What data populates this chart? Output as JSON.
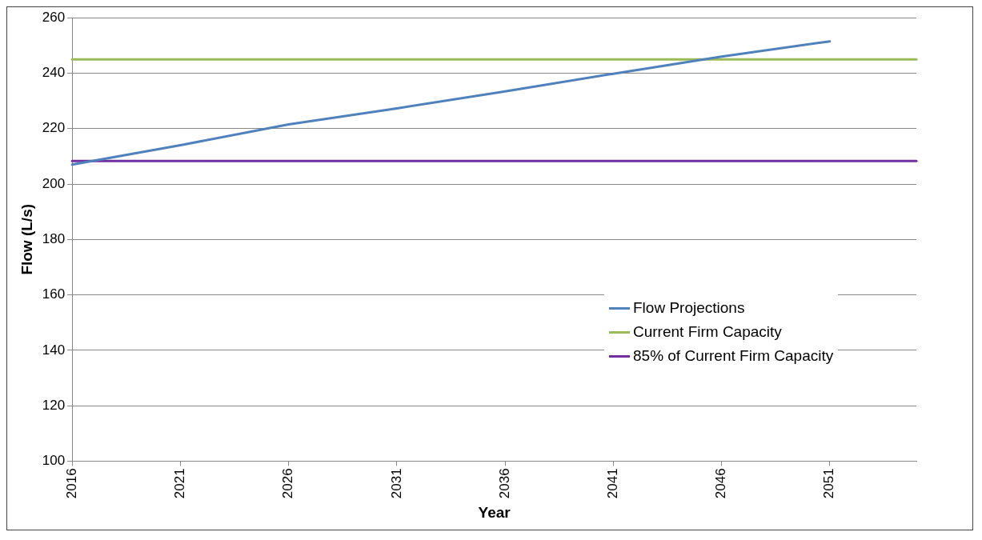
{
  "chart_data": {
    "type": "line",
    "xlabel": "Year",
    "ylabel": "Flow (L/s)",
    "xlim": [
      2016,
      2055
    ],
    "xticks": [
      2016,
      2021,
      2026,
      2031,
      2036,
      2041,
      2046,
      2051
    ],
    "ylim": [
      100,
      260
    ],
    "yticks": [
      100,
      120,
      140,
      160,
      180,
      200,
      220,
      240,
      260
    ],
    "grid": "y",
    "legend": "bottom right",
    "marker": "none",
    "line_style": "solid",
    "series": [
      {
        "name": "Flow Projections",
        "color": "#4f81bd",
        "x": [
          2016,
          2021,
          2026,
          2031,
          2036,
          2041,
          2046,
          2051
        ],
        "values": [
          207,
          214,
          221.5,
          227.3,
          233.4,
          239.8,
          246,
          251.5
        ]
      },
      {
        "name": "Current Firm Capacity",
        "color": "#9bbb59",
        "x": [
          2016,
          2055
        ],
        "values": [
          245,
          245
        ]
      },
      {
        "name": "85% of Current Firm Capacity",
        "color": "#7030a0",
        "x": [
          2016,
          2055
        ],
        "values": [
          208.3,
          208.3
        ]
      }
    ]
  }
}
